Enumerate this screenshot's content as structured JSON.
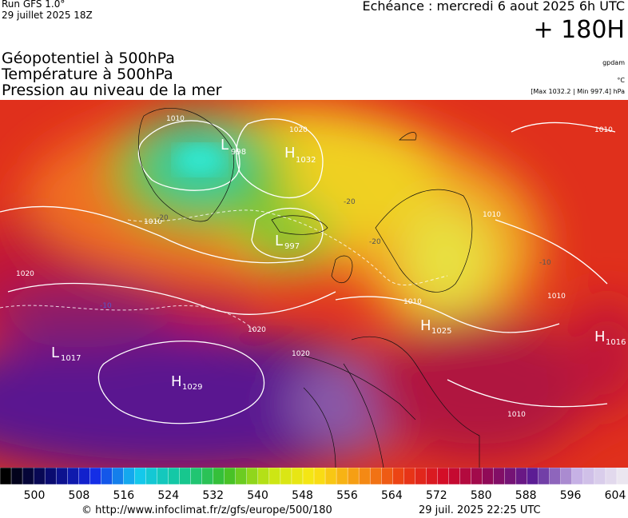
{
  "header": {
    "run": "Run GFS 1.0°",
    "run_date": "29 juillet 2025 18Z",
    "echeance": "Echéance : mercredi 6 aout 2025 6h UTC",
    "lead": "+ 180H",
    "fields": [
      "Géopotentiel à 500hPa",
      "Température à 500hPa",
      "Pression au niveau de la mer"
    ],
    "source": "gpdam",
    "unit": "°C",
    "range": "[Max 1032.2 | Min 997.4] hPa"
  },
  "map": {
    "centers": [
      {
        "symbol": "L",
        "pressure": "998"
      },
      {
        "symbol": "H",
        "pressure": "1032"
      },
      {
        "symbol": "L",
        "pressure": "997"
      },
      {
        "symbol": "H",
        "pressure": "1025"
      },
      {
        "symbol": "L",
        "pressure": "1017"
      },
      {
        "symbol": "H",
        "pressure": "1029"
      },
      {
        "symbol": "H",
        "pressure": "1016"
      }
    ],
    "contour_labels": [
      "1010",
      "1020",
      "1010",
      "-20",
      "-20",
      "-20",
      "1010",
      "1010",
      "-10",
      "1020",
      "-10",
      "1020",
      "1020",
      "1010",
      "1010",
      "1010"
    ]
  },
  "colorbar": {
    "labels": [
      500,
      508,
      516,
      524,
      532,
      540,
      548,
      556,
      564,
      572,
      580,
      588,
      596,
      604
    ]
  },
  "footer": {
    "url": "© http://www.infoclimat.fr/z/gfs/europe/500/180",
    "date": "29 juil. 2025 22:25 UTC"
  }
}
